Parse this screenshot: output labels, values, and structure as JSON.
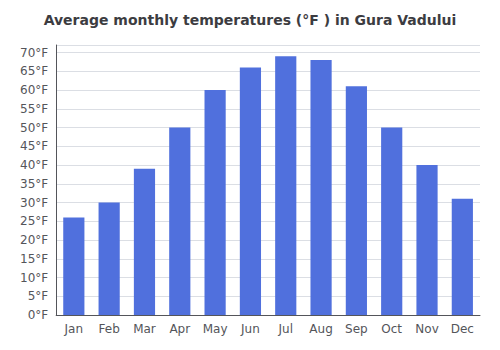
{
  "chart_data": {
    "type": "bar",
    "title": "Average monthly temperatures (°F ) in Gura Vadului",
    "categories": [
      "Jan",
      "Feb",
      "Mar",
      "Apr",
      "May",
      "Jun",
      "Jul",
      "Aug",
      "Sep",
      "Oct",
      "Nov",
      "Dec"
    ],
    "values": [
      26,
      30,
      39,
      50,
      60,
      66,
      69,
      68,
      61,
      50,
      40,
      31
    ],
    "ylim": [
      0,
      72
    ],
    "yticks": [
      {
        "value": 0,
        "label": "0°F"
      },
      {
        "value": 5,
        "label": "5°F"
      },
      {
        "value": 10,
        "label": "10°F"
      },
      {
        "value": 15,
        "label": "15°F"
      },
      {
        "value": 20,
        "label": "20°F"
      },
      {
        "value": 25,
        "label": "25°F"
      },
      {
        "value": 30,
        "label": "30°F"
      },
      {
        "value": 35,
        "label": "35°F"
      },
      {
        "value": 40,
        "label": "40°F"
      },
      {
        "value": 45,
        "label": "45°F"
      },
      {
        "value": 50,
        "label": "50°F"
      },
      {
        "value": 55,
        "label": "55°F"
      },
      {
        "value": 60,
        "label": "60°F"
      },
      {
        "value": 65,
        "label": "65°F"
      },
      {
        "value": 70,
        "label": "70°F"
      }
    ],
    "grid": true
  }
}
